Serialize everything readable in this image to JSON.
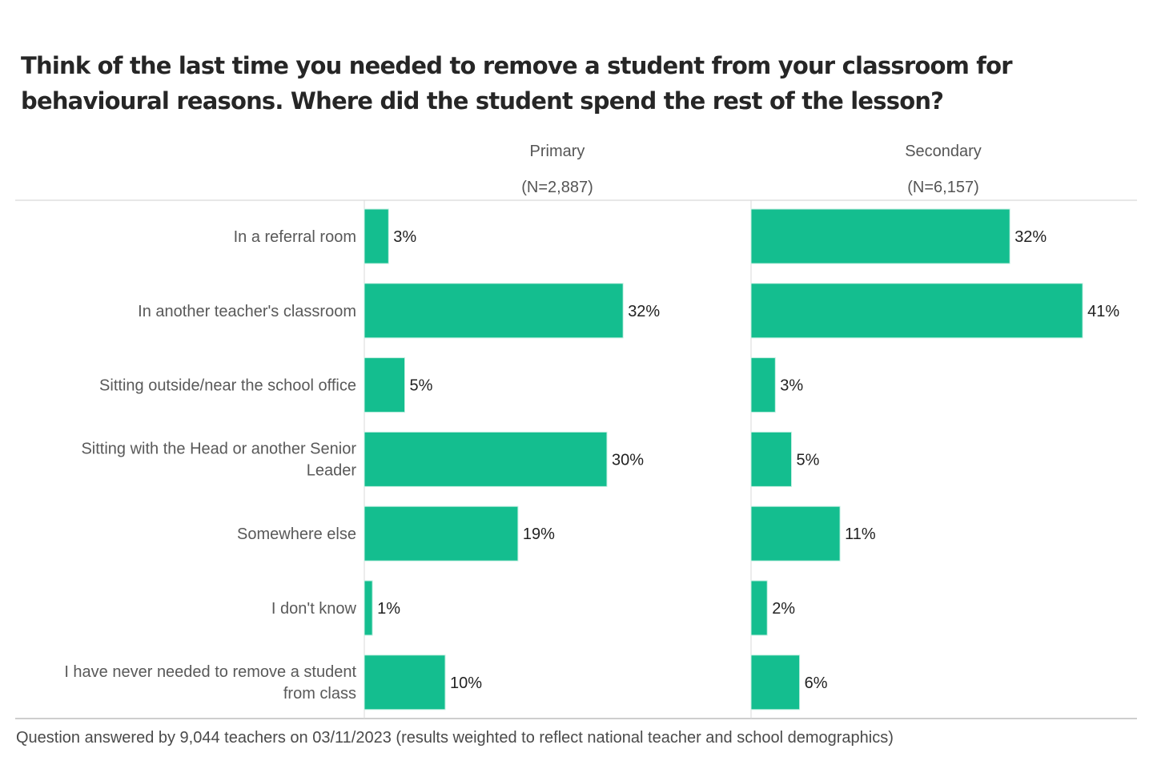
{
  "chart_data": {
    "type": "bar",
    "orientation": "horizontal",
    "title": "Think of the last time you needed to remove a student from your classroom for behavioural reasons. Where did the student spend the rest of the lesson?",
    "categories": [
      "In a referral room",
      "In another teacher's classroom",
      "Sitting outside/near the school office",
      "Sitting with the Head or another Senior Leader",
      "Somewhere else",
      "I don't know",
      "I have never needed to remove a student from class"
    ],
    "category_lines": [
      [
        "In a referral room"
      ],
      [
        "In another teacher's classroom"
      ],
      [
        "Sitting outside/near the school office"
      ],
      [
        "Sitting with the Head or another Senior",
        "Leader"
      ],
      [
        "Somewhere else"
      ],
      [
        "I don't know"
      ],
      [
        "I have never needed to remove a student",
        "from class"
      ]
    ],
    "series": [
      {
        "name": "Primary",
        "subtitle": "(N=2,887)",
        "values": [
          3,
          32,
          5,
          30,
          19,
          1,
          10
        ]
      },
      {
        "name": "Secondary",
        "subtitle": "(N=6,157)",
        "values": [
          32,
          41,
          3,
          5,
          11,
          2,
          6
        ]
      }
    ],
    "value_suffix": "%",
    "bar_color": "#14be8f",
    "grid": false,
    "legend": "none",
    "footnote": "Question answered by 9,044 teachers on 03/11/2023 (results weighted to reflect national teacher and school demographics)"
  }
}
